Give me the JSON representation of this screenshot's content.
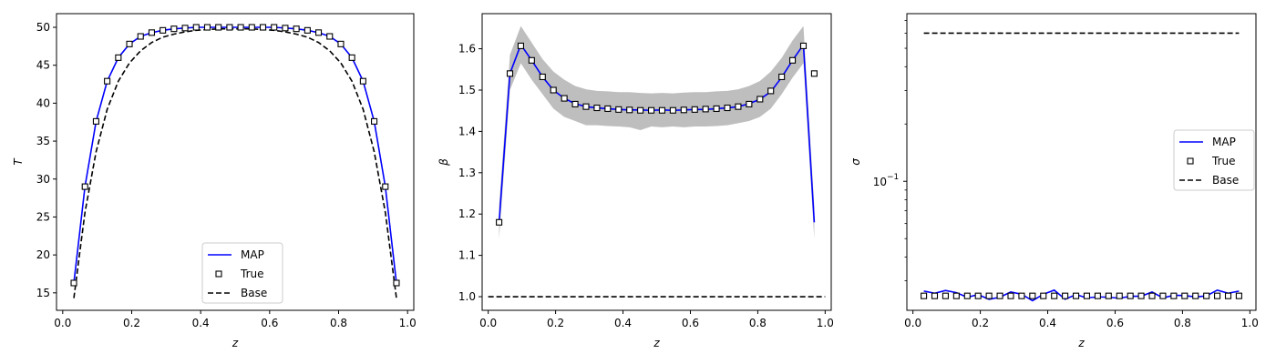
{
  "colors": {
    "map": "#0000ff",
    "true": "#000000",
    "base": "#000000",
    "band": "#bebebe",
    "frame": "#000000"
  },
  "legend_order": [
    "map",
    "true",
    "base"
  ],
  "chart_data": [
    {
      "type": "line",
      "xlabel": "z",
      "ylabel": "T",
      "xlim": [
        -0.018,
        1.018
      ],
      "ylim": [
        12.7,
        51.8
      ],
      "xticks": [
        0.0,
        0.2,
        0.4,
        0.6,
        0.8,
        1.0
      ],
      "yticks": [
        15,
        20,
        25,
        30,
        35,
        40,
        45,
        50
      ],
      "legend": {
        "position": "lower-center",
        "entries": {
          "map": "MAP",
          "true": "True",
          "base": " Base"
        }
      },
      "series": {
        "map": {
          "x": [
            0.0323,
            0.0645,
            0.0968,
            0.129,
            0.1613,
            0.1935,
            0.2258,
            0.2581,
            0.2903,
            0.3226,
            0.3548,
            0.3871,
            0.4194,
            0.4516,
            0.4839,
            0.5161,
            0.5484,
            0.5806,
            0.6129,
            0.6452,
            0.6774,
            0.7097,
            0.7419,
            0.7742,
            0.8065,
            0.8387,
            0.871,
            0.9032,
            0.9355,
            0.9677
          ],
          "y": [
            16.3,
            29.0,
            37.6,
            42.9,
            46.0,
            47.8,
            48.8,
            49.3,
            49.6,
            49.8,
            49.9,
            50.0,
            50.0,
            50.0,
            50.0,
            50.0,
            50.0,
            50.0,
            50.0,
            49.9,
            49.8,
            49.6,
            49.3,
            48.8,
            47.8,
            46.0,
            42.9,
            37.6,
            29.0,
            16.3
          ]
        },
        "true": {
          "x": [
            0.0323,
            0.0645,
            0.0968,
            0.129,
            0.1613,
            0.1935,
            0.2258,
            0.2581,
            0.2903,
            0.3226,
            0.3548,
            0.3871,
            0.4194,
            0.4516,
            0.4839,
            0.5161,
            0.5484,
            0.5806,
            0.6129,
            0.6452,
            0.6774,
            0.7097,
            0.7419,
            0.7742,
            0.8065,
            0.8387,
            0.871,
            0.9032,
            0.9355,
            0.9677
          ],
          "y": [
            16.3,
            29.0,
            37.6,
            42.9,
            46.0,
            47.8,
            48.8,
            49.3,
            49.6,
            49.8,
            49.9,
            50.0,
            50.0,
            50.0,
            50.0,
            50.0,
            50.0,
            50.0,
            50.0,
            49.9,
            49.8,
            49.6,
            49.3,
            48.8,
            47.8,
            46.0,
            42.9,
            37.6,
            29.0,
            16.3
          ]
        },
        "base": {
          "x": [
            0.0323,
            0.0645,
            0.0968,
            0.129,
            0.1613,
            0.1935,
            0.2258,
            0.2581,
            0.2903,
            0.3226,
            0.3548,
            0.3871,
            0.4194,
            0.4516,
            0.4839,
            0.5161,
            0.5484,
            0.5806,
            0.6129,
            0.6452,
            0.6774,
            0.7097,
            0.7419,
            0.7742,
            0.8065,
            0.8387,
            0.871,
            0.9032,
            0.9355,
            0.9677
          ],
          "y": [
            14.3,
            25.6,
            33.6,
            39.2,
            42.9,
            45.3,
            46.9,
            48.0,
            48.7,
            49.1,
            49.4,
            49.6,
            49.7,
            49.8,
            49.8,
            49.8,
            49.8,
            49.7,
            49.6,
            49.4,
            49.1,
            48.7,
            48.0,
            46.9,
            45.3,
            42.9,
            39.2,
            33.6,
            25.6,
            14.3
          ]
        }
      }
    },
    {
      "type": "line",
      "xlabel": "z",
      "ylabel": "β",
      "xlim": [
        -0.018,
        1.018
      ],
      "ylim": [
        0.967,
        1.685
      ],
      "xticks": [
        0.0,
        0.2,
        0.4,
        0.6,
        0.8,
        1.0
      ],
      "yticks": [
        1.0,
        1.1,
        1.2,
        1.3,
        1.4,
        1.5,
        1.6
      ],
      "series": {
        "map": {
          "x": [
            0.0323,
            0.0645,
            0.0968,
            0.129,
            0.1613,
            0.1935,
            0.2258,
            0.2581,
            0.2903,
            0.3226,
            0.3548,
            0.3871,
            0.4194,
            0.4516,
            0.4839,
            0.5161,
            0.5484,
            0.5806,
            0.6129,
            0.6452,
            0.6774,
            0.7097,
            0.7419,
            0.7742,
            0.8065,
            0.8387,
            0.871,
            0.9032,
            0.9355,
            0.9677
          ],
          "y": [
            1.18,
            1.54,
            1.61,
            1.572,
            1.532,
            1.5,
            1.48,
            1.467,
            1.46,
            1.457,
            1.455,
            1.453,
            1.452,
            1.452,
            1.451,
            1.452,
            1.451,
            1.452,
            1.453,
            1.453,
            1.455,
            1.457,
            1.46,
            1.467,
            1.478,
            1.496,
            1.531,
            1.572,
            1.61,
            1.18
          ]
        },
        "true": {
          "x": [
            0.0323,
            0.0645,
            0.0968,
            0.129,
            0.1613,
            0.1935,
            0.2258,
            0.2581,
            0.2903,
            0.3226,
            0.3548,
            0.3871,
            0.4194,
            0.4516,
            0.4839,
            0.5161,
            0.5484,
            0.5806,
            0.6129,
            0.6452,
            0.6774,
            0.7097,
            0.7419,
            0.7742,
            0.8065,
            0.8387,
            0.871,
            0.9032,
            0.9355,
            0.9677
          ],
          "y": [
            1.18,
            1.54,
            1.607,
            1.572,
            1.532,
            1.5,
            1.48,
            1.466,
            1.46,
            1.457,
            1.455,
            1.453,
            1.452,
            1.451,
            1.451,
            1.451,
            1.451,
            1.452,
            1.453,
            1.454,
            1.455,
            1.457,
            1.46,
            1.466,
            1.478,
            1.498,
            1.532,
            1.572,
            1.607,
            1.54
          ]
        },
        "band": {
          "x": [
            0.0323,
            0.0645,
            0.0968,
            0.129,
            0.1613,
            0.1935,
            0.2258,
            0.2581,
            0.2903,
            0.3226,
            0.3548,
            0.3871,
            0.4194,
            0.4516,
            0.4839,
            0.5161,
            0.5484,
            0.5806,
            0.6129,
            0.6452,
            0.6774,
            0.7097,
            0.7419,
            0.7742,
            0.8065,
            0.8387,
            0.871,
            0.9032,
            0.9355,
            0.9677
          ],
          "upper": [
            1.22,
            1.585,
            1.655,
            1.615,
            1.575,
            1.545,
            1.525,
            1.51,
            1.502,
            1.498,
            1.497,
            1.495,
            1.495,
            1.493,
            1.492,
            1.493,
            1.492,
            1.494,
            1.495,
            1.495,
            1.497,
            1.498,
            1.502,
            1.51,
            1.522,
            1.545,
            1.578,
            1.62,
            1.655,
            1.22
          ],
          "lower": [
            1.14,
            1.5,
            1.565,
            1.525,
            1.49,
            1.455,
            1.435,
            1.425,
            1.415,
            1.415,
            1.413,
            1.412,
            1.41,
            1.403,
            1.412,
            1.41,
            1.412,
            1.41,
            1.412,
            1.412,
            1.413,
            1.415,
            1.42,
            1.425,
            1.435,
            1.455,
            1.49,
            1.53,
            1.565,
            1.14
          ]
        },
        "base": {
          "x": [
            0.0,
            1.0
          ],
          "y": [
            1.0,
            1.0
          ]
        }
      }
    },
    {
      "type": "line",
      "xlabel": "z",
      "ylabel": "σ",
      "xlim": [
        -0.018,
        1.018
      ],
      "ylim": [
        0.021,
        0.76
      ],
      "yscale": "log",
      "xticks": [
        0.0,
        0.2,
        0.4,
        0.6,
        0.8,
        1.0
      ],
      "yticks_major": [
        {
          "value": 0.1,
          "label": "10",
          "exponent": "−1"
        }
      ],
      "yticks_minor": [
        0.03,
        0.04,
        0.05,
        0.06,
        0.07,
        0.08,
        0.09,
        0.2,
        0.3,
        0.4,
        0.5,
        0.6,
        0.7
      ],
      "legend": {
        "position": "center-right",
        "entries": {
          "map": "MAP",
          "true": "True",
          "base": "Base"
        }
      },
      "series": {
        "map": {
          "x": [
            0.0323,
            0.0645,
            0.0968,
            0.129,
            0.1613,
            0.1935,
            0.2258,
            0.2581,
            0.2903,
            0.3226,
            0.3548,
            0.3871,
            0.4194,
            0.4516,
            0.4839,
            0.5161,
            0.5484,
            0.5806,
            0.6129,
            0.6452,
            0.6774,
            0.7097,
            0.7419,
            0.7742,
            0.8065,
            0.8387,
            0.871,
            0.9032,
            0.9355,
            0.9677
          ],
          "y": [
            0.0265,
            0.0258,
            0.0267,
            0.026,
            0.0246,
            0.0254,
            0.024,
            0.0246,
            0.0262,
            0.0255,
            0.0236,
            0.0255,
            0.0268,
            0.024,
            0.0254,
            0.0244,
            0.0247,
            0.0246,
            0.0243,
            0.0249,
            0.0249,
            0.0262,
            0.0244,
            0.0252,
            0.0251,
            0.0247,
            0.025,
            0.0268,
            0.0258,
            0.0265
          ]
        },
        "true": {
          "x": [
            0.0323,
            0.0645,
            0.0968,
            0.129,
            0.1613,
            0.1935,
            0.2258,
            0.2581,
            0.2903,
            0.3226,
            0.3548,
            0.3871,
            0.4194,
            0.4516,
            0.4839,
            0.5161,
            0.5484,
            0.5806,
            0.6129,
            0.6452,
            0.6774,
            0.7097,
            0.7419,
            0.7742,
            0.8065,
            0.8387,
            0.871,
            0.9032,
            0.9355,
            0.9677
          ],
          "y": [
            0.025,
            0.025,
            0.025,
            0.025,
            0.025,
            0.025,
            0.025,
            0.025,
            0.025,
            0.025,
            0.025,
            0.025,
            0.025,
            0.025,
            0.025,
            0.025,
            0.025,
            0.025,
            0.025,
            0.025,
            0.025,
            0.025,
            0.025,
            0.025,
            0.025,
            0.025,
            0.025,
            0.025,
            0.025,
            0.025
          ]
        },
        "base": {
          "x": [
            0.0323,
            0.9677
          ],
          "y": [
            0.6,
            0.6
          ]
        }
      }
    }
  ]
}
